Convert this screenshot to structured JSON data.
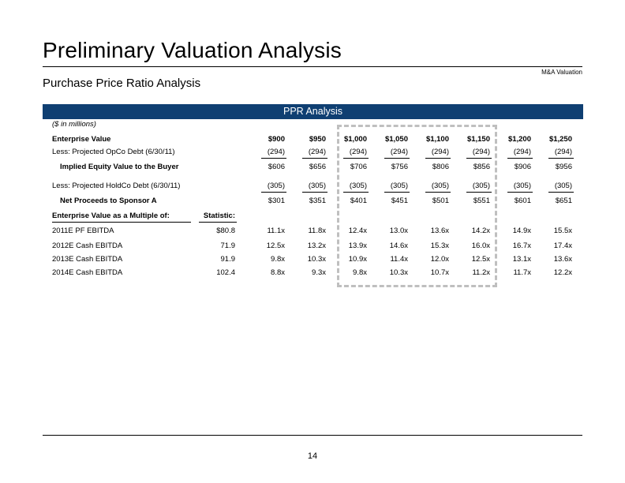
{
  "header": {
    "title": "Preliminary Valuation Analysis",
    "tagline": "M&A Valuation",
    "subtitle": "Purchase Price Ratio Analysis"
  },
  "banner": "PPR Analysis",
  "table": {
    "units_note": "($ in millions)",
    "ev_label": "Enterprise Value",
    "ev_values": [
      "$900",
      "$950",
      "$1,000",
      "$1,050",
      "$1,100",
      "$1,150",
      "$1,200",
      "$1,250"
    ],
    "rows_top": [
      {
        "label": "Less: Projected OpCo Debt (6/30/11)",
        "values": [
          "(294)",
          "(294)",
          "(294)",
          "(294)",
          "(294)",
          "(294)",
          "(294)",
          "(294)"
        ]
      },
      {
        "label": "Implied Equity Value to the Buyer",
        "values": [
          "$606",
          "$656",
          "$706",
          "$756",
          "$806",
          "$856",
          "$906",
          "$956"
        ]
      },
      {
        "label": "Less: Projected HoldCo Debt (6/30/11)",
        "values": [
          "(305)",
          "(305)",
          "(305)",
          "(305)",
          "(305)",
          "(305)",
          "(305)",
          "(305)"
        ]
      },
      {
        "label": "Net Proceeds to Sponsor A",
        "values": [
          "$301",
          "$351",
          "$401",
          "$451",
          "$501",
          "$551",
          "$601",
          "$651"
        ]
      }
    ],
    "multiple_header": "Enterprise Value as a Multiple of:",
    "statistic_header": "Statistic:",
    "rows_multiples": [
      {
        "label": "2011E PF EBITDA",
        "statistic": "$80.8",
        "values": [
          "11.1x",
          "11.8x",
          "12.4x",
          "13.0x",
          "13.6x",
          "14.2x",
          "14.9x",
          "15.5x"
        ]
      },
      {
        "label": "2012E Cash EBITDA",
        "statistic": "71.9",
        "values": [
          "12.5x",
          "13.2x",
          "13.9x",
          "14.6x",
          "15.3x",
          "16.0x",
          "16.7x",
          "17.4x"
        ]
      },
      {
        "label": "2013E Cash EBITDA",
        "statistic": "91.9",
        "values": [
          "9.8x",
          "10.3x",
          "10.9x",
          "11.4x",
          "12.0x",
          "12.5x",
          "13.1x",
          "13.6x"
        ]
      },
      {
        "label": "2014E Cash EBITDA",
        "statistic": "102.4",
        "values": [
          "8.8x",
          "9.3x",
          "9.8x",
          "10.3x",
          "10.7x",
          "11.2x",
          "11.7x",
          "12.2x"
        ]
      }
    ]
  },
  "footer": {
    "page_number": "14"
  }
}
